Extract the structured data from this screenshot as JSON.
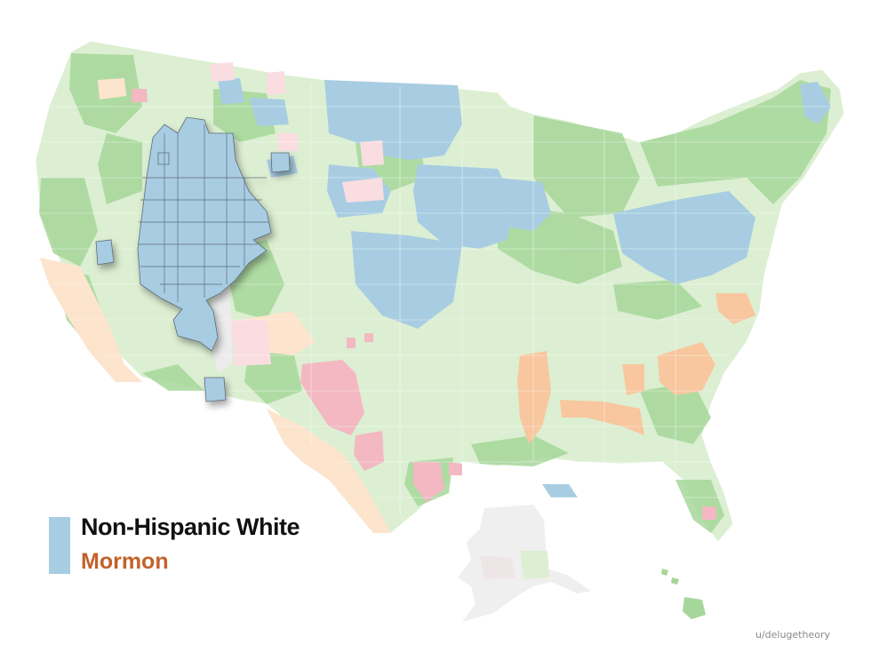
{
  "legend": {
    "primary_label": "Non-Hispanic White",
    "secondary_label": "Mormon",
    "swatch_color": "#a8cde2",
    "secondary_color": "#c4612b"
  },
  "credit": "u/delugetheory",
  "colors": {
    "background": "#ffffff",
    "light_green": "#dcefd2",
    "green": "#a6d79a",
    "blue": "#a8cde2",
    "pink": "#f3b8c2",
    "light_pink": "#fadde1",
    "orange": "#f8c79f",
    "light_orange": "#fde4cd",
    "gray": "#ececec",
    "county_line": "#ffffff",
    "utah_line": "#5e6b7a"
  }
}
